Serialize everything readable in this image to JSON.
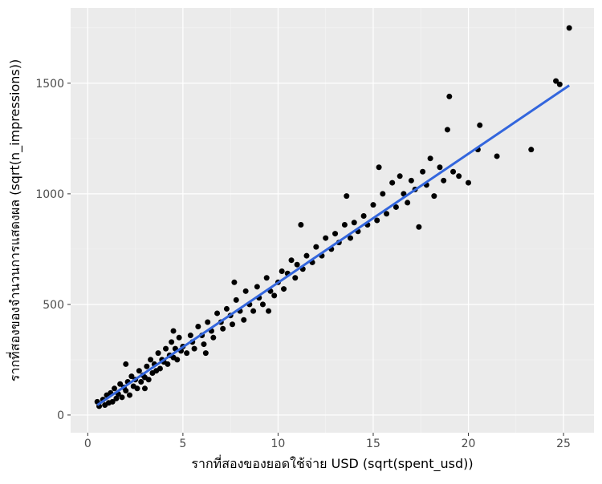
{
  "chart_data": {
    "type": "scatter",
    "x_label": "รากที่สองของยอดใช้จ่าย USD (sqrt(spent_usd))",
    "y_label": "รากที่สองของจำนวนการแสดงผล (sqrt(n_impressions))",
    "xlim": [
      -0.9,
      26.6
    ],
    "ylim": [
      -80,
      1840
    ],
    "xticks": [
      0,
      5,
      10,
      15,
      20,
      25
    ],
    "yticks": [
      0,
      500,
      1000,
      1500
    ],
    "xminorticks": [
      2.5,
      7.5,
      12.5,
      17.5,
      22.5
    ],
    "yminorticks": [
      250,
      750,
      1250,
      1750
    ],
    "grid": true,
    "point_color": "#000000",
    "x": [
      0.5,
      0.6,
      0.8,
      0.9,
      1.0,
      1.1,
      1.2,
      1.3,
      1.4,
      1.5,
      1.6,
      1.7,
      1.8,
      1.9,
      2.0,
      2.1,
      2.2,
      2.3,
      2.4,
      2.5,
      2.6,
      2.7,
      2.8,
      2.9,
      3.0,
      3.1,
      3.2,
      3.3,
      3.4,
      3.5,
      3.6,
      3.7,
      3.8,
      3.9,
      4.0,
      4.1,
      4.2,
      4.3,
      4.4,
      4.5,
      4.6,
      4.7,
      4.8,
      4.9,
      5.0,
      5.2,
      5.4,
      5.5,
      5.6,
      5.8,
      6.0,
      6.1,
      6.3,
      6.5,
      6.6,
      6.8,
      7.0,
      7.1,
      7.3,
      7.5,
      7.6,
      7.8,
      8.0,
      8.2,
      8.3,
      8.5,
      8.7,
      8.9,
      9.0,
      9.2,
      9.4,
      9.6,
      9.8,
      10.0,
      10.2,
      10.3,
      10.5,
      10.7,
      10.9,
      11.0,
      11.2,
      11.3,
      11.5,
      11.8,
      12.0,
      12.3,
      12.5,
      12.8,
      13.0,
      13.2,
      13.5,
      13.6,
      13.8,
      14.0,
      14.2,
      14.5,
      14.7,
      15.0,
      15.2,
      15.3,
      15.5,
      15.7,
      16.0,
      16.2,
      16.4,
      16.6,
      16.8,
      17.0,
      17.2,
      17.4,
      17.6,
      17.8,
      18.0,
      18.2,
      18.5,
      18.7,
      19.0,
      18.9,
      19.2,
      19.5,
      20.0,
      20.5,
      20.6,
      21.5,
      23.3,
      24.6,
      24.8,
      25.3,
      2.0,
      3.0,
      4.5,
      6.2,
      7.7,
      9.5
    ],
    "y": [
      60,
      40,
      70,
      45,
      90,
      55,
      100,
      60,
      120,
      75,
      95,
      140,
      80,
      125,
      110,
      150,
      90,
      175,
      130,
      160,
      120,
      200,
      150,
      180,
      170,
      220,
      160,
      250,
      190,
      230,
      200,
      280,
      210,
      250,
      240,
      300,
      230,
      270,
      330,
      260,
      300,
      250,
      350,
      290,
      310,
      280,
      360,
      330,
      300,
      400,
      360,
      320,
      420,
      380,
      350,
      460,
      420,
      390,
      480,
      450,
      410,
      520,
      470,
      430,
      560,
      500,
      470,
      580,
      530,
      500,
      620,
      560,
      540,
      600,
      650,
      570,
      640,
      700,
      620,
      680,
      860,
      660,
      720,
      690,
      760,
      720,
      800,
      750,
      820,
      780,
      860,
      990,
      800,
      870,
      830,
      900,
      860,
      950,
      880,
      1120,
      1000,
      910,
      1050,
      940,
      1080,
      1000,
      960,
      1060,
      1020,
      850,
      1100,
      1040,
      1160,
      990,
      1120,
      1060,
      1440,
      1290,
      1100,
      1080,
      1050,
      1200,
      1310,
      1170,
      1200,
      1510,
      1495,
      1750,
      230,
      120,
      380,
      280,
      600,
      470
    ],
    "trend": {
      "color": "#3366dd",
      "x": [
        0.5,
        25.3
      ],
      "y": [
        45,
        1490
      ]
    }
  }
}
